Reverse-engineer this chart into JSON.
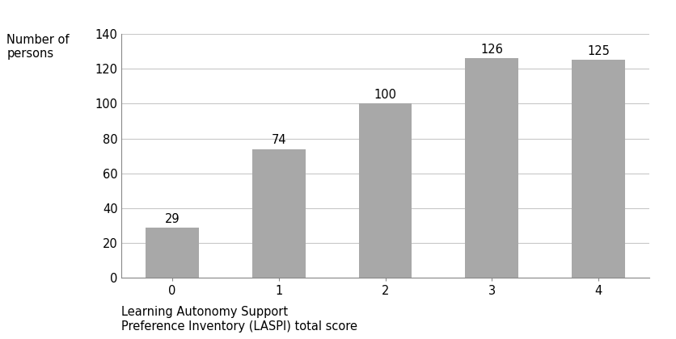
{
  "categories": [
    "0",
    "1",
    "2",
    "3",
    "4"
  ],
  "values": [
    29,
    74,
    100,
    126,
    125
  ],
  "bar_color": "#a8a8a8",
  "ylabel_line1": "Number of",
  "ylabel_line2": "persons",
  "xlabel_line1": "Learning Autonomy Support",
  "xlabel_line2": "Preference Inventory (LASPI) total score",
  "ylim": [
    0,
    140
  ],
  "yticks": [
    0,
    20,
    40,
    60,
    80,
    100,
    120,
    140
  ],
  "background_color": "#ffffff",
  "plot_bg_color": "#ffffff",
  "bar_width": 0.5,
  "label_fontsize": 10.5,
  "tick_fontsize": 10.5,
  "value_label_fontsize": 10.5,
  "grid_color": "#c8c8c8",
  "spine_color": "#888888"
}
